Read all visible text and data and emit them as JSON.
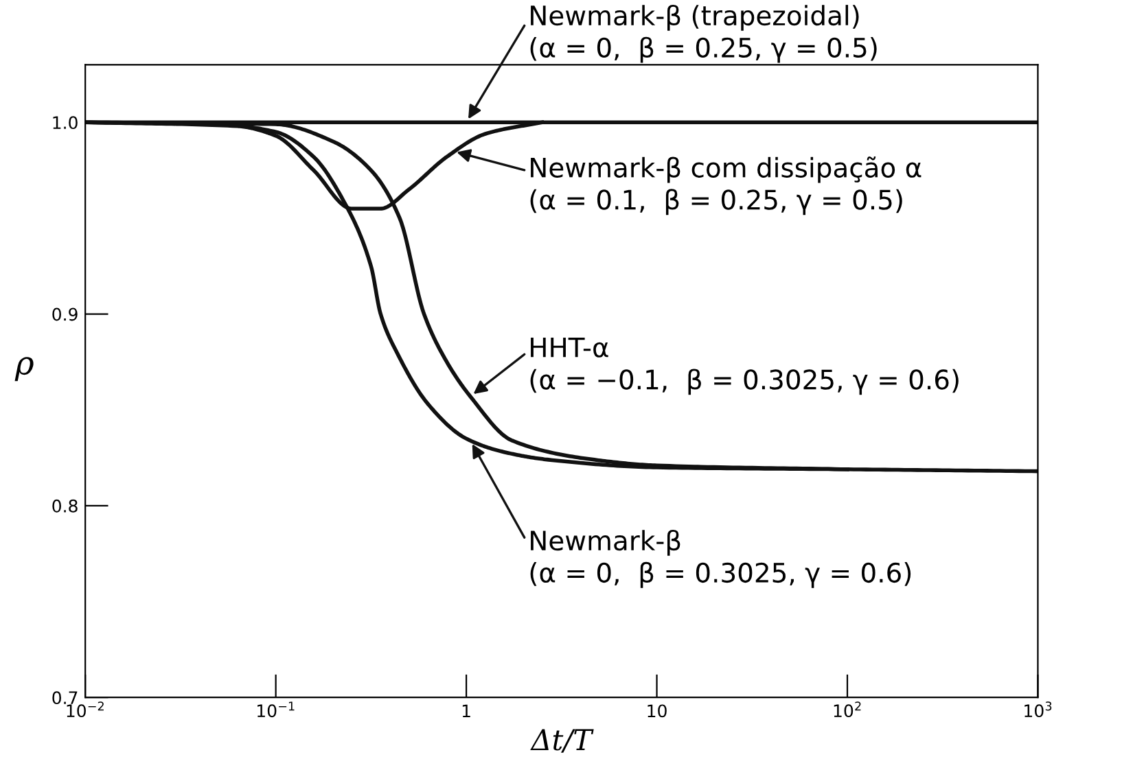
{
  "chart_data": {
    "type": "line",
    "xlabel": "Δt/T",
    "ylabel": "ρ",
    "log": "x",
    "xlim": [
      0.01,
      1000
    ],
    "ylim": [
      0.7,
      1.03
    ],
    "xticks": [
      {
        "value": 0.01,
        "label": "10$^{−2}$"
      },
      {
        "value": 0.1,
        "label": "10$^{−1}$"
      },
      1,
      10,
      {
        "value": 100,
        "label": "10$^{2}$"
      },
      {
        "value": 1000,
        "label": "10$^{3}$"
      }
    ],
    "yticks": [
      0.7,
      0.8,
      0.9,
      {
        "value": 1.0,
        "label": "1.0"
      }
    ],
    "grid": false,
    "marker": "none",
    "line_style": "solid",
    "series": [
      {
        "color": "#111111",
        "x": [
          0.01,
          1000
        ],
        "values": [
          1.0,
          1.0
        ]
      },
      {
        "color": "#111111",
        "x": [
          0.01,
          0.063,
          0.1,
          0.158,
          0.25,
          0.355,
          0.5,
          0.79,
          1.26,
          2.5
        ],
        "values": [
          1.0,
          0.998,
          0.993,
          0.975,
          0.955,
          0.955,
          0.965,
          0.982,
          0.994,
          1.0
        ]
      },
      {
        "color": "#111111",
        "x": [
          0.01,
          0.1,
          0.2,
          0.316,
          0.447,
          0.6,
          0.79,
          1.05,
          1.74,
          4.7,
          10,
          100
        ],
        "values": [
          1.0,
          0.999,
          0.99,
          0.975,
          0.95,
          0.9,
          0.875,
          0.857,
          0.834,
          0.824,
          0.821,
          0.819
        ]
      },
      {
        "color": "#111111",
        "x": [
          0.01,
          0.05,
          0.1,
          0.158,
          0.224,
          0.316,
          0.355,
          0.437,
          0.63,
          1.0,
          1.58,
          2.7,
          10,
          100,
          1000
        ],
        "values": [
          1.0,
          0.999,
          0.995,
          0.982,
          0.96,
          0.925,
          0.9,
          0.879,
          0.853,
          0.835,
          0.828,
          0.824,
          0.82,
          0.819,
          0.818
        ]
      }
    ],
    "annotations": [
      {
        "text": "Newmark-β (trapezoidal)\n(α = 0,  β = 0.25, γ = 0.5)",
        "x": 1,
        "y": 1.0
      },
      {
        "text": "Newmark-β com dissipação α\n(α = 0.1,  β = 0.25, γ = 0.5)",
        "x": 0.85,
        "y": 0.985
      },
      {
        "text": "HHT-α\n(α = −0.1,  β = 0.3025, γ = 0.6)",
        "x": 1.05,
        "y": 0.857
      },
      {
        "text": "Newmark-β\n(α = 0,  β = 0.3025, γ = 0.6)",
        "x": 1.05,
        "y": 0.834
      }
    ]
  }
}
